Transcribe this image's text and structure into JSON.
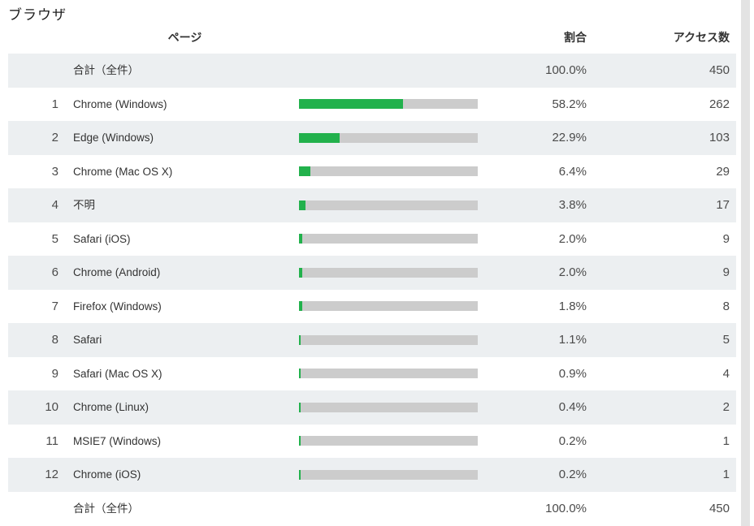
{
  "title": "ブラウザ",
  "table": {
    "headers": {
      "page": "ページ",
      "ratio": "割合",
      "count": "アクセス数"
    },
    "rows": [
      {
        "rank": "",
        "label": "合計（全件）",
        "percent": "100.0%",
        "count": "450",
        "bar": false,
        "percent_value": 100
      },
      {
        "rank": "1",
        "label": "Chrome (Windows)",
        "percent": "58.2%",
        "count": "262",
        "bar": true,
        "percent_value": 58.2
      },
      {
        "rank": "2",
        "label": "Edge (Windows)",
        "percent": "22.9%",
        "count": "103",
        "bar": true,
        "percent_value": 22.9
      },
      {
        "rank": "3",
        "label": "Chrome (Mac OS X)",
        "percent": "6.4%",
        "count": "29",
        "bar": true,
        "percent_value": 6.4
      },
      {
        "rank": "4",
        "label": "不明",
        "percent": "3.8%",
        "count": "17",
        "bar": true,
        "percent_value": 3.8
      },
      {
        "rank": "5",
        "label": "Safari (iOS)",
        "percent": "2.0%",
        "count": "9",
        "bar": true,
        "percent_value": 2.0
      },
      {
        "rank": "6",
        "label": "Chrome (Android)",
        "percent": "2.0%",
        "count": "9",
        "bar": true,
        "percent_value": 2.0
      },
      {
        "rank": "7",
        "label": "Firefox (Windows)",
        "percent": "1.8%",
        "count": "8",
        "bar": true,
        "percent_value": 1.8
      },
      {
        "rank": "8",
        "label": "Safari",
        "percent": "1.1%",
        "count": "5",
        "bar": true,
        "percent_value": 1.1
      },
      {
        "rank": "9",
        "label": "Safari (Mac OS X)",
        "percent": "0.9%",
        "count": "4",
        "bar": true,
        "percent_value": 0.9
      },
      {
        "rank": "10",
        "label": "Chrome (Linux)",
        "percent": "0.4%",
        "count": "2",
        "bar": true,
        "percent_value": 0.4
      },
      {
        "rank": "11",
        "label": "MSIE7 (Windows)",
        "percent": "0.2%",
        "count": "1",
        "bar": true,
        "percent_value": 0.2
      },
      {
        "rank": "12",
        "label": "Chrome (iOS)",
        "percent": "0.2%",
        "count": "1",
        "bar": true,
        "percent_value": 0.2
      },
      {
        "rank": "",
        "label": "合計（全件）",
        "percent": "100.0%",
        "count": "450",
        "bar": false,
        "percent_value": 100
      }
    ]
  },
  "colors": {
    "accent_green": "#22b14c",
    "bar_track": "#cccccc",
    "row_band": "#eceff1"
  },
  "chart_data": {
    "type": "bar",
    "orientation": "horizontal",
    "title": "ブラウザ",
    "columns": [
      "ページ",
      "割合",
      "アクセス数"
    ],
    "categories": [
      "Chrome (Windows)",
      "Edge (Windows)",
      "Chrome (Mac OS X)",
      "不明",
      "Safari (iOS)",
      "Chrome (Android)",
      "Firefox (Windows)",
      "Safari",
      "Safari (Mac OS X)",
      "Chrome (Linux)",
      "MSIE7 (Windows)",
      "Chrome (iOS)"
    ],
    "series": [
      {
        "name": "割合(%)",
        "values": [
          58.2,
          22.9,
          6.4,
          3.8,
          2.0,
          2.0,
          1.8,
          1.1,
          0.9,
          0.4,
          0.2,
          0.2
        ]
      },
      {
        "name": "アクセス数",
        "values": [
          262,
          103,
          29,
          17,
          9,
          9,
          8,
          5,
          4,
          2,
          1,
          1
        ]
      }
    ],
    "total": {
      "label": "合計（全件）",
      "percent": 100.0,
      "count": 450
    },
    "xlim": [
      0,
      100
    ],
    "legend": "none",
    "grid": false
  }
}
